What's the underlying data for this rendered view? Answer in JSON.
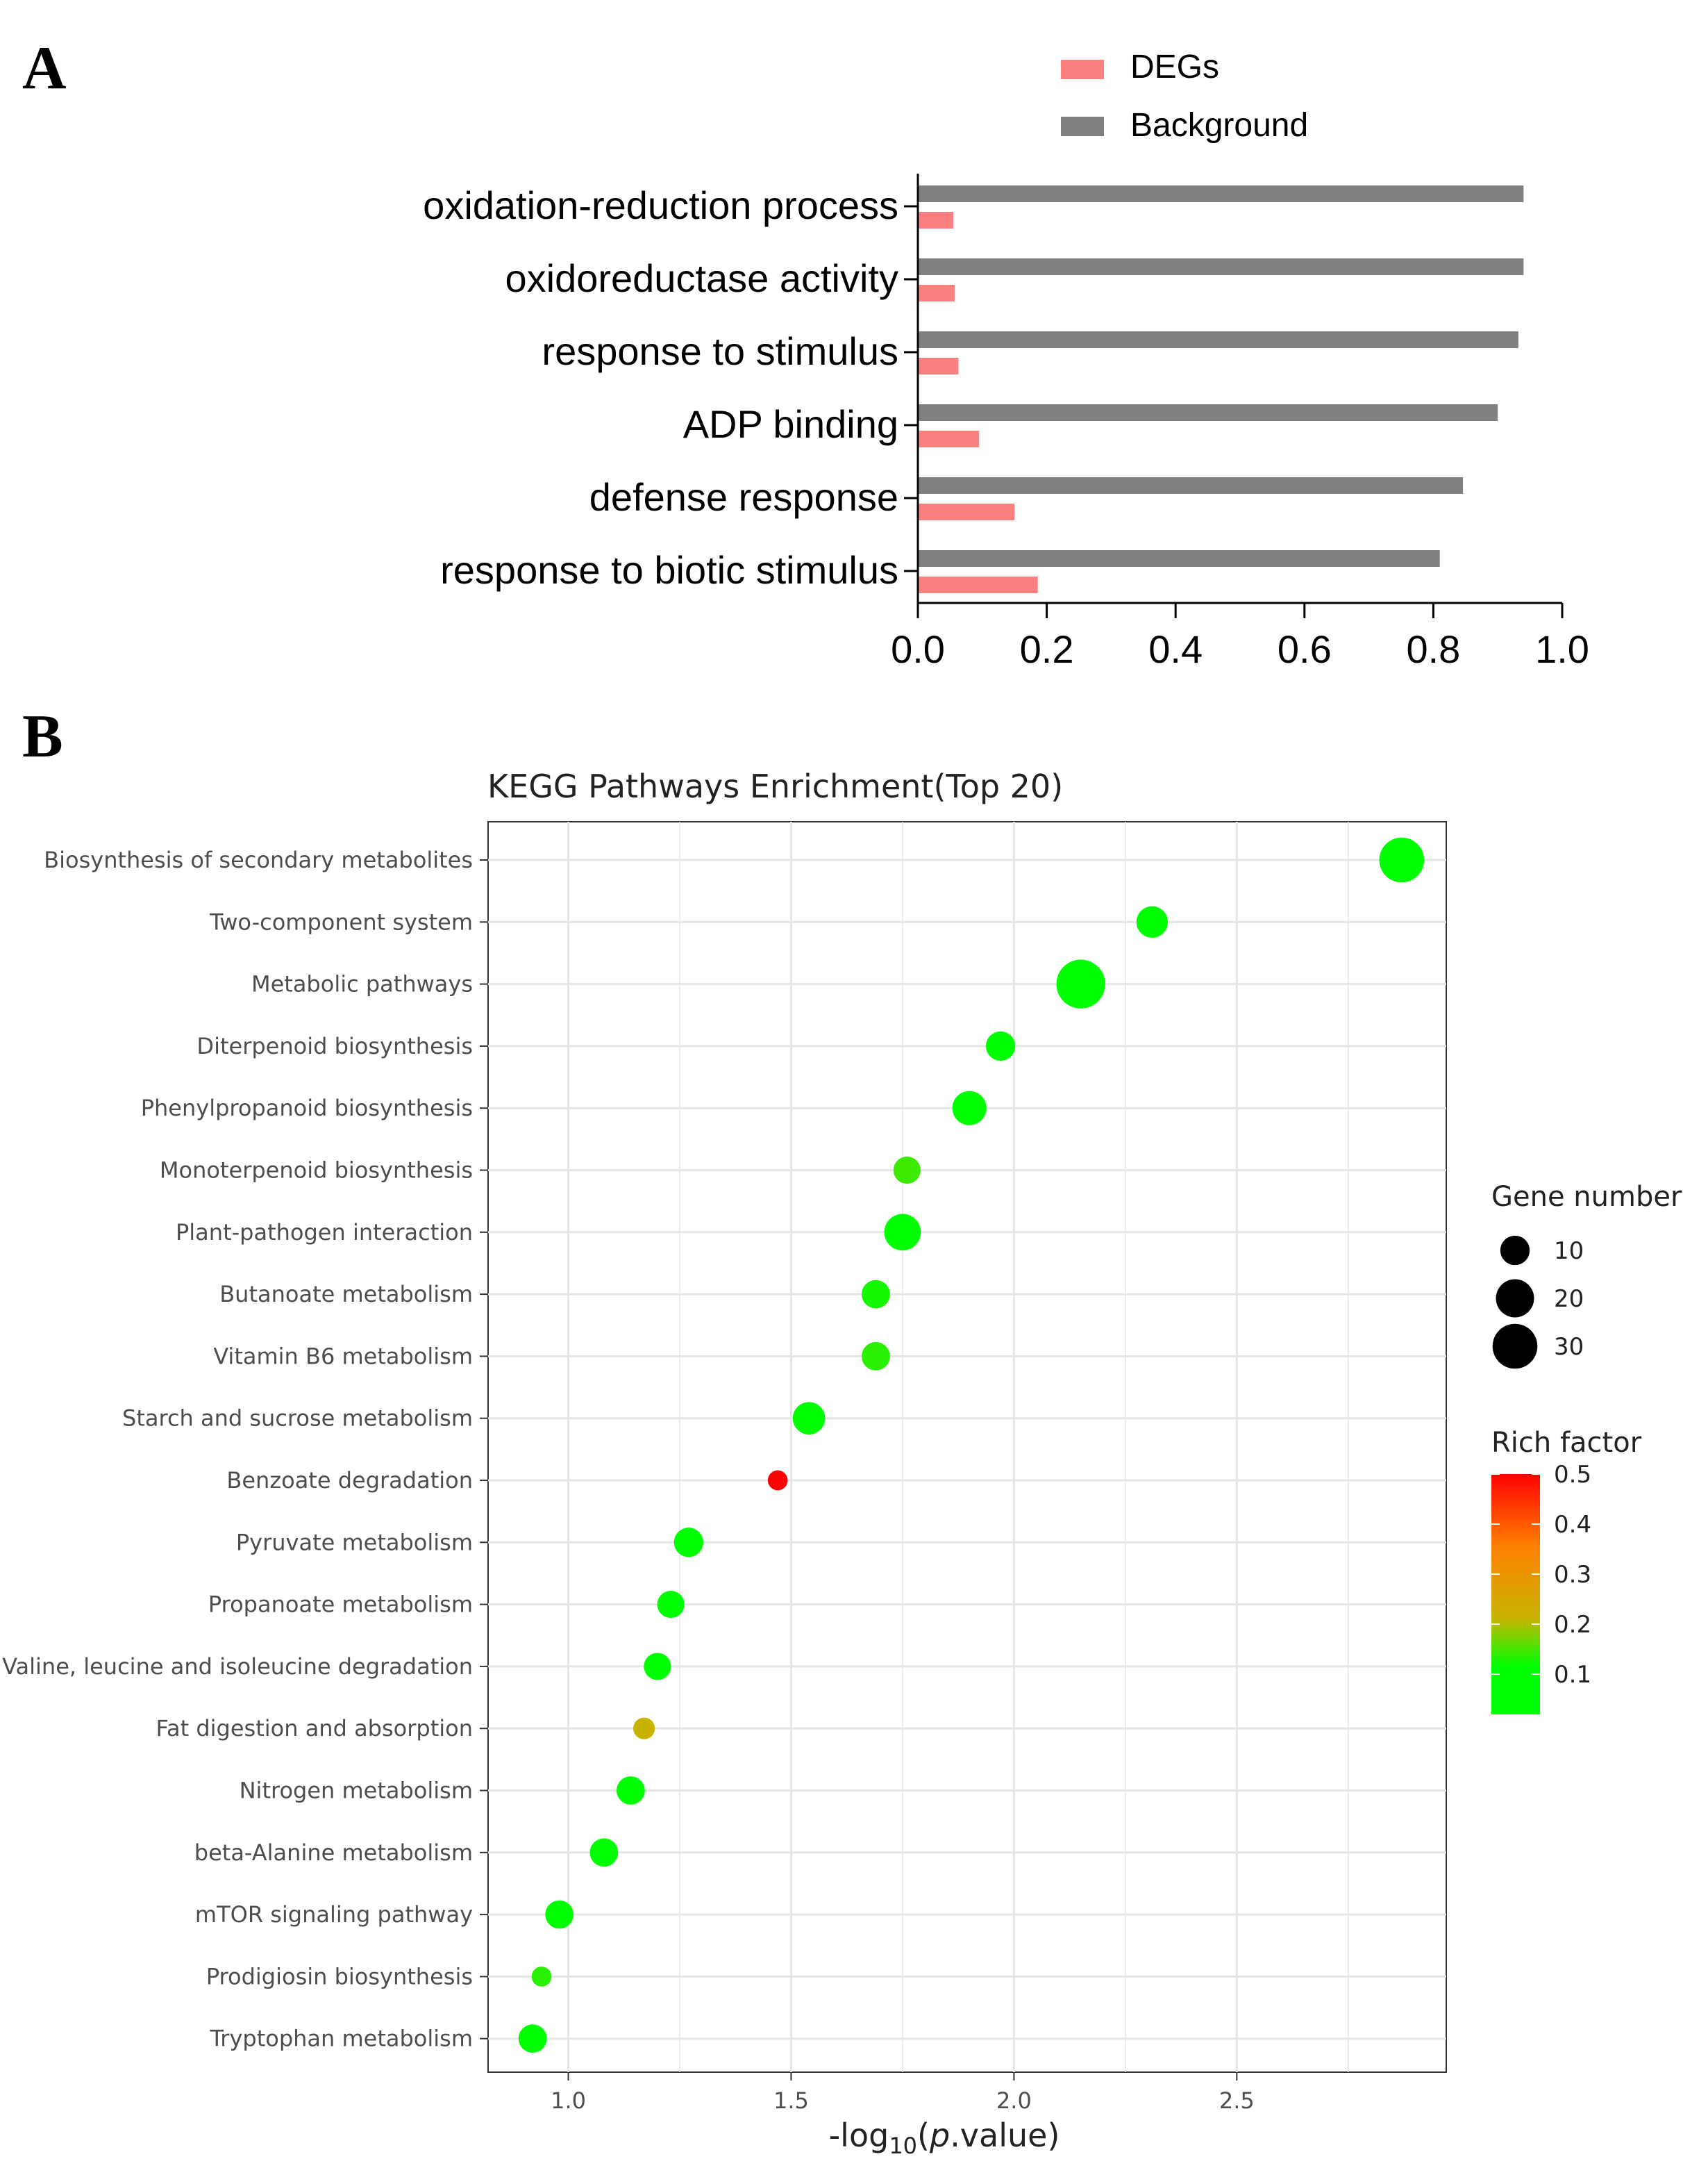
{
  "panels": {
    "a_letter": "A",
    "b_letter": "B"
  },
  "colors": {
    "degs": "#fa7f7f",
    "background": "#808080",
    "grid": "#e5e5e5",
    "rich_low": "#00ff00",
    "rich_mid": "#c8b400",
    "rich_high": "#ff0000"
  },
  "chart_data": [
    {
      "type": "bar",
      "orientation": "horizontal",
      "title": "",
      "xlabel": "",
      "ylabel": "",
      "xlim": [
        0,
        1.0
      ],
      "xticks": [
        "0.0",
        "0.2",
        "0.4",
        "0.6",
        "0.8",
        "1.0"
      ],
      "categories": [
        "oxidation-reduction process",
        "oxidoreductase activity",
        "response to stimulus",
        "ADP binding",
        "defense response",
        "response to biotic stimulus"
      ],
      "series": [
        {
          "name": "DEGs",
          "values": [
            0.055,
            0.057,
            0.063,
            0.095,
            0.15,
            0.186
          ]
        },
        {
          "name": "Background",
          "values": [
            0.94,
            0.94,
            0.932,
            0.9,
            0.846,
            0.81
          ]
        }
      ],
      "legend": [
        "DEGs",
        "Background"
      ],
      "legend_position": "top-right"
    },
    {
      "type": "scatter",
      "title": "KEGG Pathways Enrichment(Top 20)",
      "xlabel_prefix": "-log",
      "xlabel_sub": "10",
      "xlabel_open": "(",
      "xlabel_italic": "p",
      "xlabel_rest": ".value)",
      "xlim": [
        0.82,
        2.97
      ],
      "xticks": [
        "1.0",
        "1.5",
        "2.0",
        "2.5"
      ],
      "categories": [
        "Biosynthesis of secondary metabolites",
        "Two-component system",
        "Metabolic pathways",
        "Diterpenoid biosynthesis",
        "Phenylpropanoid biosynthesis",
        "Monoterpenoid biosynthesis",
        "Plant-pathogen interaction",
        "Butanoate metabolism",
        "Vitamin B6 metabolism",
        "Starch and sucrose metabolism",
        "Benzoate degradation",
        "Pyruvate metabolism",
        "Propanoate metabolism",
        "Valine, leucine and isoleucine degradation",
        "Fat digestion and absorption",
        "Nitrogen metabolism",
        "beta-Alanine metabolism",
        "mTOR signaling pathway",
        "Prodigiosin biosynthesis",
        "Tryptophan metabolism"
      ],
      "x": [
        2.87,
        2.31,
        2.15,
        1.97,
        1.9,
        1.76,
        1.75,
        1.69,
        1.69,
        1.54,
        1.47,
        1.27,
        1.23,
        1.2,
        1.17,
        1.14,
        1.08,
        0.98,
        0.94,
        0.92
      ],
      "gene_number": [
        30,
        12,
        37,
        10,
        15,
        8,
        18,
        9,
        9,
        13,
        3,
        10,
        8,
        8,
        4,
        9,
        9,
        9,
        3,
        9
      ],
      "rich_factor": [
        0.04,
        0.05,
        0.03,
        0.07,
        0.05,
        0.13,
        0.05,
        0.11,
        0.12,
        0.05,
        0.5,
        0.05,
        0.05,
        0.06,
        0.2,
        0.05,
        0.06,
        0.06,
        0.12,
        0.06
      ],
      "size_legend": {
        "title": "Gene number",
        "values": [
          10,
          20,
          30
        ],
        "labels": [
          "10",
          "20",
          "30"
        ]
      },
      "color_legend": {
        "title": "Rich factor",
        "range": [
          0.0,
          0.5
        ],
        "labels": [
          "0.5",
          "0.4",
          "0.3",
          "0.2",
          "0.1"
        ]
      }
    }
  ]
}
